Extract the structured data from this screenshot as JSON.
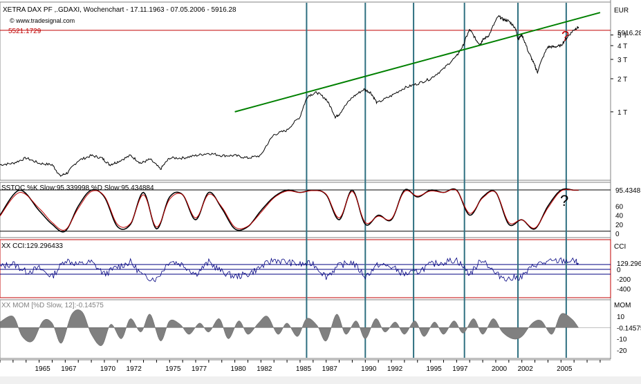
{
  "chart_data": [
    {
      "type": "line",
      "title": "XETRA DAX PF ,.GDAXI, Wochenchart - 17.11.1963 - 07.05.2006 - 5916.28",
      "source": "© www.tradesignal.com",
      "currency_label": "EUR",
      "y_scale": "log",
      "y_tick_labels": [
        "5 T",
        "4 T",
        "3 T",
        "2 T",
        "1 T"
      ],
      "y_ticks": [
        5000,
        4000,
        3000,
        2000,
        1000
      ],
      "last_value_label": "5916.28",
      "last_value": 5916.28,
      "horizontal_line_label": "5521.1729",
      "horizontal_line_value": 5521.1729,
      "annotation": "?",
      "series": [
        {
          "color": "#000000",
          "x": [
            1962.0,
            1963.0,
            1964.0,
            1965.0,
            1966.0,
            1966.6,
            1967.2,
            1968.0,
            1969.0,
            1969.8,
            1970.4,
            1971.0,
            1972.0,
            1972.8,
            1973.5,
            1974.3,
            1975.0,
            1976.0,
            1977.0,
            1978.0,
            1979.0,
            1980.0,
            1981.0,
            1982.0,
            1983.0,
            1984.0,
            1985.0,
            1985.6,
            1986.3,
            1987.0,
            1987.7,
            1988.0,
            1989.0,
            1989.9,
            1990.4,
            1990.9,
            1992.0,
            1993.0,
            1994.0,
            1995.0,
            1996.0,
            1997.0,
            1997.5,
            1998.0,
            1998.5,
            1998.8,
            1999.0,
            1999.5,
            2000.2,
            2000.6,
            2001.0,
            2001.5,
            2001.7,
            2002.0,
            2002.5,
            2003.0,
            2003.2,
            2004.0,
            2004.5,
            2005.0,
            2005.5,
            2006.0,
            2006.35
          ],
          "y": [
            330,
            340,
            380,
            340,
            330,
            260,
            280,
            360,
            400,
            380,
            330,
            350,
            400,
            340,
            370,
            300,
            380,
            380,
            400,
            420,
            400,
            400,
            380,
            400,
            620,
            680,
            900,
            1400,
            1500,
            1300,
            900,
            950,
            1350,
            1600,
            1500,
            1200,
            1400,
            1650,
            1800,
            2000,
            2450,
            3200,
            4000,
            5600,
            4500,
            4100,
            4500,
            5000,
            7400,
            6900,
            6700,
            5800,
            4600,
            5000,
            3500,
            2600,
            2300,
            3900,
            3900,
            4000,
            4800,
            5600,
            5916
          ]
        },
        {
          "name": "Trendline",
          "color": "#008000",
          "x": [
            1980.0,
            2008.0
          ],
          "y": [
            1000,
            8000
          ]
        }
      ]
    },
    {
      "type": "line",
      "title": "SSTOC %K Slow:95.339998 %D Slow:95.434884",
      "y_tick_labels": [
        "95.4348",
        "60",
        "40",
        "20",
        "0"
      ],
      "y_ticks": [
        95.43,
        60,
        40,
        20,
        0
      ],
      "ylim": [
        0,
        100
      ],
      "annotation": "?",
      "series": [
        {
          "name": "%K Slow",
          "color": "#000000",
          "x": [
            1962.0,
            1963.5,
            1965.0,
            1966.0,
            1967.0,
            1968.0,
            1969.0,
            1970.0,
            1971.0,
            1972.0,
            1973.0,
            1974.0,
            1975.0,
            1976.0,
            1977.0,
            1978.0,
            1979.0,
            1980.0,
            1981.0,
            1982.0,
            1983.0,
            1984.0,
            1985.0,
            1986.0,
            1987.0,
            1988.0,
            1989.0,
            1990.0,
            1991.0,
            1992.0,
            1993.0,
            1994.0,
            1995.0,
            1996.0,
            1997.0,
            1998.0,
            1999.0,
            2000.0,
            2001.0,
            2002.0,
            2003.0,
            2004.0,
            2005.0,
            2006.0,
            2006.35
          ],
          "y": [
            40,
            95,
            50,
            20,
            5,
            60,
            95,
            80,
            15,
            20,
            90,
            10,
            80,
            85,
            30,
            90,
            55,
            10,
            15,
            50,
            80,
            95,
            90,
            95,
            85,
            30,
            95,
            20,
            40,
            30,
            95,
            80,
            95,
            90,
            95,
            40,
            80,
            90,
            20,
            30,
            10,
            60,
            95,
            95,
            95
          ]
        },
        {
          "name": "%D Slow",
          "color": "#c00000",
          "x": [
            1962.0,
            1963.5,
            1965.0,
            1966.0,
            1967.0,
            1968.0,
            1969.0,
            1970.0,
            1971.0,
            1972.0,
            1973.0,
            1974.0,
            1975.0,
            1976.0,
            1977.0,
            1978.0,
            1979.0,
            1980.0,
            1981.0,
            1982.0,
            1983.0,
            1984.0,
            1985.0,
            1986.0,
            1987.0,
            1988.0,
            1989.0,
            1990.0,
            1991.0,
            1992.0,
            1993.0,
            1994.0,
            1995.0,
            1996.0,
            1997.0,
            1998.0,
            1999.0,
            2000.0,
            2001.0,
            2002.0,
            2003.0,
            2004.0,
            2005.0,
            2006.0,
            2006.35
          ],
          "y": [
            38,
            90,
            55,
            24,
            8,
            55,
            92,
            82,
            20,
            22,
            85,
            14,
            75,
            85,
            34,
            86,
            58,
            14,
            16,
            46,
            78,
            93,
            90,
            94,
            86,
            34,
            92,
            24,
            38,
            32,
            92,
            82,
            93,
            90,
            94,
            44,
            78,
            90,
            24,
            30,
            12,
            56,
            93,
            95,
            95
          ]
        }
      ]
    },
    {
      "type": "line",
      "title": "XX CCI:129.296433",
      "y_tick_labels": [
        "CCI",
        "129.296",
        "0",
        "-200",
        "-400"
      ],
      "y_ticks": [
        129.296,
        0,
        -200,
        -400
      ],
      "ylim": [
        -500,
        500
      ],
      "series": [
        {
          "color": "#000080",
          "x": [
            1962.0,
            1963.0,
            1964.0,
            1965.0,
            1966.0,
            1967.0,
            1968.0,
            1969.0,
            1970.0,
            1971.0,
            1972.0,
            1973.0,
            1974.0,
            1975.0,
            1976.0,
            1977.0,
            1978.0,
            1979.0,
            1980.0,
            1981.0,
            1982.0,
            1983.0,
            1984.0,
            1985.0,
            1986.0,
            1987.0,
            1988.0,
            1989.0,
            1990.0,
            1991.0,
            1992.0,
            1993.0,
            1994.0,
            1995.0,
            1996.0,
            1997.0,
            1998.0,
            1999.0,
            2000.0,
            2001.0,
            2002.0,
            2003.0,
            2004.0,
            2005.0,
            2006.0,
            2006.35
          ],
          "y": [
            50,
            120,
            -50,
            20,
            -150,
            200,
            100,
            150,
            -100,
            50,
            150,
            -150,
            -200,
            180,
            100,
            -100,
            150,
            -50,
            -150,
            -100,
            50,
            200,
            150,
            100,
            120,
            -150,
            80,
            150,
            -150,
            100,
            50,
            -100,
            -50,
            100,
            150,
            200,
            -100,
            220,
            -100,
            -200,
            -150,
            100,
            150,
            180,
            170,
            129
          ]
        }
      ]
    },
    {
      "type": "area",
      "title": "XX MOM [%D Slow, 12]:-0.14575",
      "y_tick_labels": [
        "MOM",
        "10",
        "-0.14575",
        "-10",
        "-20"
      ],
      "y_ticks": [
        10,
        -0.14575,
        -10,
        -20
      ],
      "ylim": [
        -25,
        18
      ],
      "series": [
        {
          "color": "#808080",
          "x": [
            1962.0,
            1963.0,
            1963.7,
            1964.5,
            1965.3,
            1966.0,
            1966.7,
            1967.5,
            1968.3,
            1969.0,
            1969.8,
            1970.5,
            1971.3,
            1972.0,
            1972.8,
            1973.5,
            1974.3,
            1975.0,
            1975.8,
            1976.5,
            1977.3,
            1978.0,
            1978.8,
            1979.5,
            1980.3,
            1981.0,
            1981.8,
            1982.5,
            1983.3,
            1984.0,
            1984.8,
            1985.5,
            1986.3,
            1987.0,
            1987.8,
            1988.5,
            1989.3,
            1990.0,
            1990.8,
            1991.5,
            1992.3,
            1993.0,
            1993.8,
            1994.5,
            1995.3,
            1996.0,
            1996.8,
            1997.5,
            1998.3,
            1999.0,
            1999.8,
            2000.5,
            2001.3,
            2002.0,
            2002.8,
            2003.5,
            2004.3,
            2005.0,
            2005.8,
            2006.35
          ],
          "y": [
            5,
            10,
            -8,
            -12,
            6,
            4,
            -14,
            12,
            14,
            -6,
            -16,
            3,
            -10,
            8,
            -4,
            12,
            -12,
            6,
            3,
            -6,
            4,
            -4,
            8,
            -10,
            6,
            -6,
            4,
            10,
            -6,
            4,
            -8,
            8,
            2,
            -12,
            12,
            -6,
            6,
            -10,
            8,
            -4,
            5,
            -6,
            6,
            -8,
            5,
            -6,
            6,
            -5,
            8,
            -6,
            8,
            -4,
            -10,
            -8,
            4,
            6,
            -6,
            12,
            8,
            -0.15
          ]
        }
      ]
    }
  ],
  "x_axis": {
    "tick_labels": [
      "1965",
      "1967",
      "1970",
      "1972",
      "1975",
      "1977",
      "1980",
      "1982",
      "1985",
      "1987",
      "1990",
      "1992",
      "1995",
      "1997",
      "2000",
      "2002",
      "2005"
    ],
    "ticks": [
      1965,
      1967,
      1970,
      1972,
      1975,
      1977,
      1980,
      1982,
      1985,
      1987,
      1990,
      1992,
      1995,
      1997,
      2000,
      2002,
      2005
    ],
    "range": [
      1962.0,
      2008.8
    ]
  },
  "vertical_lines": [
    1985.5,
    1990.0,
    1993.7,
    1997.6,
    2001.7,
    2005.4
  ],
  "colors": {
    "vertical_lines": "#2e6f80",
    "price_line": "#000000",
    "trendline": "#008000",
    "horizontal_line": "#c00000",
    "stoch_d": "#c00000",
    "cci": "#000080",
    "mom_fill": "#808080",
    "panel_border": "#c00000"
  }
}
